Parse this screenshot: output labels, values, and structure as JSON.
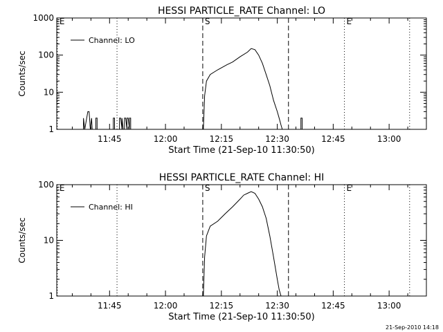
{
  "footer": {
    "timestamp": "21-Sep-2010 14:18"
  },
  "chart_data": [
    {
      "type": "line",
      "title": "HESSI PARTICLE_RATE Channel: LO",
      "xlabel": "Start Time (21-Sep-10 11:30:50)",
      "ylabel": "Counts/sec",
      "yscale": "log",
      "ylim": [
        1,
        1000
      ],
      "xlim": [
        "11:30:50",
        "13:10:00"
      ],
      "x_ticks": [
        "11:45",
        "12:00",
        "12:15",
        "12:30",
        "12:45",
        "13:00"
      ],
      "y_ticks": [
        "1",
        "10",
        "100",
        "1000"
      ],
      "legend": {
        "entries": [
          "Channel: LO"
        ],
        "placement": "top-left"
      },
      "markers": [
        {
          "label": "E",
          "time": "11:31:00",
          "style": "dotted"
        },
        {
          "label": "",
          "time": "11:47:00",
          "style": "dotted"
        },
        {
          "label": "S",
          "time": "12:10:00",
          "style": "dashed"
        },
        {
          "label": "",
          "time": "12:33:00",
          "style": "dashed"
        },
        {
          "label": "E",
          "time": "12:48:00",
          "style": "dotted"
        },
        {
          "label": "",
          "time": "13:05:30",
          "style": "dotted"
        }
      ],
      "series": [
        {
          "name": "Channel: LO",
          "x": [
            "11:38:00",
            "11:38:00",
            "11:38:20",
            "11:39:10",
            "11:39:30",
            "11:39:50",
            "11:40:10",
            "11:40:20",
            "11:41:20",
            "11:41:20",
            "11:41:40",
            "11:41:40",
            "11:46:00",
            "11:46:00",
            "11:46:20",
            "11:46:20",
            "11:47:40",
            "11:47:40",
            "11:48:00",
            "11:48:20",
            "11:48:20",
            "11:48:40",
            "11:49:00",
            "11:49:00",
            "11:49:20",
            "11:49:40",
            "11:49:40",
            "11:50:00",
            "11:50:20",
            "11:50:20",
            "11:50:40",
            "11:50:40",
            "12:10:10",
            "12:10:30",
            "12:11:00",
            "12:12:00",
            "12:14:00",
            "12:16:30",
            "12:18:00",
            "12:20:00",
            "12:22:00",
            "12:23:00",
            "12:24:00",
            "12:25:00",
            "12:26:00",
            "12:27:00",
            "12:28:00",
            "12:29:00",
            "12:30:00",
            "12:30:30",
            "12:31:00",
            "12:31:20",
            "12:36:20",
            "12:36:20",
            "12:36:40",
            "12:36:40"
          ],
          "values": [
            1,
            2,
            1,
            3,
            3,
            1,
            2,
            1,
            1,
            2,
            2,
            1,
            1,
            2,
            2,
            1,
            1,
            2,
            2,
            1,
            2,
            1,
            1,
            2,
            2,
            1,
            2,
            2,
            1,
            2,
            2,
            1,
            1,
            8,
            20,
            30,
            40,
            55,
            65,
            90,
            120,
            150,
            140,
            100,
            60,
            30,
            15,
            6,
            3,
            2,
            1.3,
            1,
            1,
            2,
            2,
            1
          ]
        }
      ]
    },
    {
      "type": "line",
      "title": "HESSI PARTICLE_RATE Channel: HI",
      "xlabel": "Start Time (21-Sep-10 11:30:50)",
      "ylabel": "Counts/sec",
      "yscale": "log",
      "ylim": [
        1,
        100
      ],
      "xlim": [
        "11:30:50",
        "13:10:00"
      ],
      "x_ticks": [
        "11:45",
        "12:00",
        "12:15",
        "12:30",
        "12:45",
        "13:00"
      ],
      "y_ticks": [
        "1",
        "10",
        "100"
      ],
      "legend": {
        "entries": [
          "Channel: HI"
        ],
        "placement": "top-left"
      },
      "markers": [
        {
          "label": "E",
          "time": "11:31:00",
          "style": "dotted"
        },
        {
          "label": "",
          "time": "11:47:00",
          "style": "dotted"
        },
        {
          "label": "S",
          "time": "12:10:00",
          "style": "dashed"
        },
        {
          "label": "",
          "time": "12:33:00",
          "style": "dashed"
        },
        {
          "label": "E",
          "time": "12:48:00",
          "style": "dotted"
        },
        {
          "label": "",
          "time": "13:05:30",
          "style": "dotted"
        }
      ],
      "series": [
        {
          "name": "Channel: HI",
          "x": [
            "12:10:10",
            "12:10:30",
            "12:11:00",
            "12:12:00",
            "12:14:00",
            "12:16:00",
            "12:18:00",
            "12:20:00",
            "12:21:00",
            "12:22:00",
            "12:23:00",
            "12:24:00",
            "12:25:00",
            "12:26:00",
            "12:27:00",
            "12:28:00",
            "12:29:00",
            "12:30:00",
            "12:30:30",
            "12:31:00"
          ],
          "values": [
            1,
            5,
            12,
            18,
            22,
            30,
            40,
            55,
            65,
            70,
            75,
            70,
            55,
            40,
            25,
            12,
            5,
            2,
            1.3,
            1
          ]
        }
      ]
    }
  ]
}
